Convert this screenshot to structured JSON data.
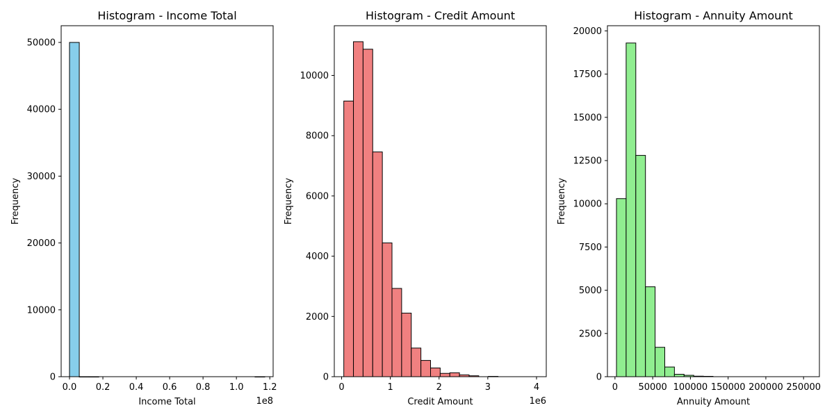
{
  "chart_data": [
    {
      "type": "bar",
      "title": "Histogram - Income Total",
      "xlabel": "Income Total",
      "ylabel": "Frequency",
      "x_offset_label": "1e8",
      "color": "#87ceeb",
      "edge_color": "#000000",
      "xlim": [
        -0.05,
        1.22
      ],
      "ylim": [
        0,
        52500
      ],
      "xticks": [
        0.0,
        0.2,
        0.4,
        0.6,
        0.8,
        1.0,
        1.2
      ],
      "xtick_labels": [
        "0.0",
        "0.2",
        "0.4",
        "0.6",
        "0.8",
        "1.0",
        "1.2"
      ],
      "yticks": [
        0,
        10000,
        20000,
        30000,
        40000,
        50000
      ],
      "ytick_labels": [
        "0",
        "10000",
        "20000",
        "30000",
        "40000",
        "50000"
      ],
      "bins": {
        "start": 0.0,
        "width": 0.0585,
        "values": [
          50000,
          3,
          1,
          0,
          0,
          0,
          0,
          0,
          0,
          0,
          0,
          0,
          0,
          0,
          0,
          0,
          0,
          0,
          0,
          1
        ]
      }
    },
    {
      "type": "bar",
      "title": "Histogram - Credit Amount",
      "xlabel": "Credit Amount",
      "ylabel": "Frequency",
      "x_offset_label": "1e6",
      "color": "#f08080",
      "edge_color": "#000000",
      "xlim": [
        -0.15,
        4.2
      ],
      "ylim": [
        0,
        11650
      ],
      "xticks": [
        0,
        1,
        2,
        3,
        4
      ],
      "xtick_labels": [
        "0",
        "1",
        "2",
        "3",
        "4"
      ],
      "yticks": [
        0,
        2000,
        4000,
        6000,
        8000,
        10000
      ],
      "ytick_labels": [
        "0",
        "2000",
        "4000",
        "6000",
        "8000",
        "10000"
      ],
      "bins": {
        "start": 0.045,
        "width": 0.1978,
        "values": [
          9150,
          11120,
          10870,
          7460,
          4440,
          2930,
          2110,
          950,
          540,
          290,
          110,
          130,
          60,
          30,
          0,
          10,
          0,
          0,
          0,
          0
        ]
      }
    },
    {
      "type": "bar",
      "title": "Histogram - Annuity Amount",
      "xlabel": "Annuity Amount",
      "ylabel": "Frequency",
      "color": "#90ee90",
      "edge_color": "#000000",
      "xlim": [
        -10000,
        271000
      ],
      "ylim": [
        0,
        20300
      ],
      "xticks": [
        0,
        50000,
        100000,
        150000,
        200000,
        250000
      ],
      "xtick_labels": [
        "0",
        "50000",
        "100000",
        "150000",
        "200000",
        "250000"
      ],
      "yticks": [
        0,
        2500,
        5000,
        7500,
        10000,
        12500,
        15000,
        17500,
        20000
      ],
      "ytick_labels": [
        "0",
        "2500",
        "5000",
        "7500",
        "10000",
        "12500",
        "15000",
        "17500",
        "20000"
      ],
      "bins": {
        "start": 2000,
        "width": 12800,
        "values": [
          10300,
          19300,
          12800,
          5200,
          1700,
          560,
          140,
          80,
          30,
          20,
          0,
          0,
          0,
          0,
          0,
          0,
          0,
          0,
          0,
          0
        ]
      }
    }
  ]
}
